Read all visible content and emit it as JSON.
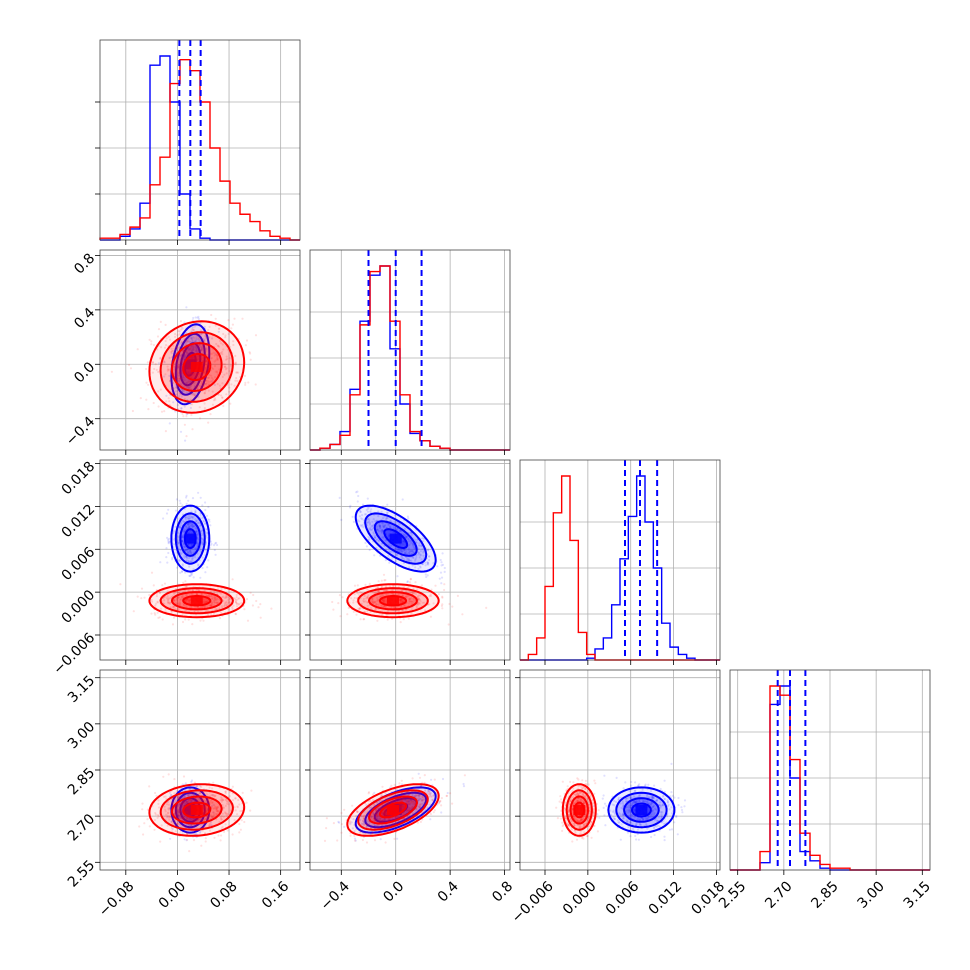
{
  "chart_data": {
    "type": "scatter",
    "title": "",
    "grid": true,
    "parameters": [
      {
        "range": [
          -0.12,
          0.19
        ],
        "ticks": [
          -0.08,
          0.0,
          0.08,
          0.16
        ],
        "tick_labels": [
          "−0.08",
          "0.00",
          "0.08",
          "0.16"
        ]
      },
      {
        "range": [
          -0.63,
          0.84
        ],
        "ticks": [
          -0.4,
          0.0,
          0.4,
          0.8
        ],
        "tick_labels": [
          "−0.4",
          "0.0",
          "0.4",
          "0.8"
        ]
      },
      {
        "range": [
          -0.0095,
          0.0185
        ],
        "ticks": [
          -0.006,
          0.0,
          0.006,
          0.012,
          0.018
        ],
        "tick_labels": [
          "−0.006",
          "0.000",
          "0.006",
          "0.012",
          "0.018"
        ]
      },
      {
        "range": [
          2.525,
          3.175
        ],
        "ticks": [
          2.55,
          2.7,
          2.85,
          3.0,
          3.15
        ],
        "tick_labels": [
          "2.55",
          "2.70",
          "2.85",
          "3.00",
          "3.15"
        ]
      }
    ],
    "series": [
      {
        "color": "#0000ff",
        "means": [
          0.02,
          0.0,
          0.0075,
          2.72
        ],
        "sds": [
          0.014,
          0.14,
          0.0022,
          0.035
        ],
        "correlation": [
          [
            1,
            0.3,
            0,
            0
          ],
          [
            0.3,
            1,
            -0.65,
            0.6
          ],
          [
            0,
            -0.65,
            1,
            0
          ],
          [
            0,
            0.6,
            0,
            1
          ]
        ],
        "quantiles": [
          [
            0.003,
            0.02,
            0.036
          ],
          [
            -0.2,
            0.0,
            0.19
          ],
          [
            0.0052,
            0.0073,
            0.0097
          ],
          [
            2.68,
            2.72,
            2.77
          ]
        ],
        "histograms": [
          [
            0,
            0,
            0.02,
            0.06,
            0.2,
            0.95,
            1.0,
            0.75,
            0.25,
            0.06,
            0.01,
            0,
            0,
            0,
            0,
            0,
            0,
            0,
            0,
            0
          ],
          [
            0,
            0.01,
            0.03,
            0.1,
            0.33,
            0.7,
            0.95,
            1.0,
            0.55,
            0.25,
            0.09,
            0.05,
            0.02,
            0.01,
            0,
            0,
            0,
            0,
            0,
            0
          ],
          [
            0,
            0,
            0,
            0,
            0,
            0,
            0,
            0,
            0.01,
            0.06,
            0.12,
            0.3,
            0.55,
            0.78,
            1.0,
            0.75,
            0.5,
            0.2,
            0.07,
            0.03,
            0.01,
            0,
            0,
            0
          ],
          [
            0,
            0,
            0,
            0.04,
            0.9,
            1.0,
            0.5,
            0.1,
            0.05,
            0.01,
            0,
            0,
            0,
            0,
            0,
            0,
            0,
            0,
            0,
            0
          ]
        ]
      },
      {
        "color": "#ff0000",
        "means": [
          0.03,
          -0.02,
          -0.0012,
          2.72
        ],
        "sds": [
          0.035,
          0.16,
          0.0011,
          0.04
        ],
        "correlation": [
          [
            1,
            0.1,
            0,
            0.1
          ],
          [
            0.1,
            1,
            0,
            0.55
          ],
          [
            0,
            0,
            1,
            0
          ],
          [
            0.1,
            0.55,
            0,
            1
          ]
        ],
        "histograms": [
          [
            0.01,
            0.01,
            0.03,
            0.07,
            0.12,
            0.3,
            0.45,
            0.85,
            0.98,
            0.92,
            0.75,
            0.5,
            0.32,
            0.2,
            0.14,
            0.1,
            0.05,
            0.02,
            0.01,
            0
          ],
          [
            0,
            0.01,
            0.03,
            0.08,
            0.3,
            0.68,
            0.97,
            1.0,
            0.7,
            0.3,
            0.1,
            0.05,
            0.02,
            0.01,
            0,
            0,
            0,
            0,
            0,
            0
          ],
          [
            0,
            0.03,
            0.12,
            0.4,
            0.8,
            1.0,
            0.65,
            0.15,
            0.03,
            0,
            0,
            0,
            0,
            0,
            0,
            0,
            0,
            0,
            0,
            0,
            0,
            0,
            0,
            0
          ],
          [
            0,
            0,
            0,
            0.1,
            1.0,
            0.95,
            0.6,
            0.2,
            0.08,
            0.03,
            0.01,
            0.01,
            0,
            0,
            0,
            0,
            0,
            0,
            0,
            0
          ]
        ]
      }
    ],
    "contour_levels_sigma": [
      0.6,
      1.1,
      1.6,
      2.1
    ]
  }
}
